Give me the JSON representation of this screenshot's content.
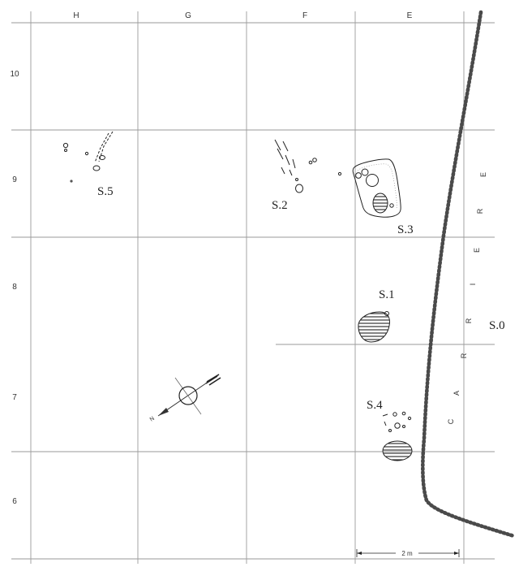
{
  "grid": {
    "columns": [
      "H",
      "G",
      "F",
      "E"
    ],
    "rows": [
      "10",
      "9",
      "8",
      "7",
      "6"
    ]
  },
  "structures": {
    "s0": "S.0",
    "s1": "S.1",
    "s2": "S.2",
    "s3": "S.3",
    "s4": "S.4",
    "s5": "S.5"
  },
  "quarry_label": [
    "C",
    "A",
    "R",
    "R",
    "I",
    "E",
    "R",
    "E"
  ],
  "north_label": "N",
  "scale_label": "2 m",
  "colors": {
    "ink": "#222222",
    "grid": "#9a9a9a",
    "boundary": "#555555"
  }
}
